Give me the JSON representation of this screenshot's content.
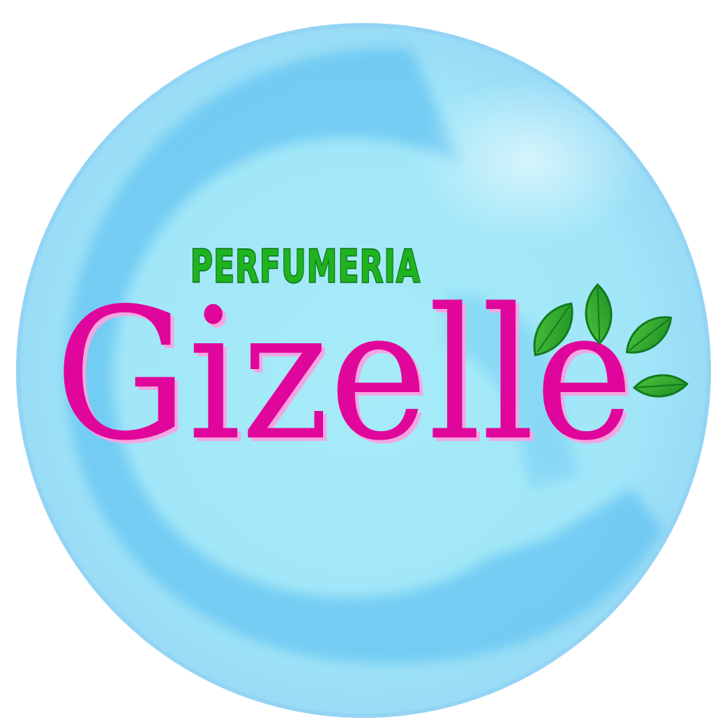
{
  "logo": {
    "tagline": "PERFUMERIA",
    "brand_name": "Gizelle",
    "icons": {
      "background": "bubble-badge-icon",
      "watermark": "letter-c-watermark-icon",
      "leaves": "green-leaves-icon"
    },
    "colors": {
      "page_background": "#ffffff",
      "badge_fill": "#a3e8f7",
      "badge_rim": "#8fd0f2",
      "watermark_blue": "#4fb8ef",
      "tagline_green": "#1fb31f",
      "tagline_outline": "#0a6e12",
      "brand_magenta": "#e0069b",
      "brand_shadow": "#f4a6e0",
      "leaf_green": "#2fa82f",
      "leaf_dark": "#117a1e"
    }
  }
}
